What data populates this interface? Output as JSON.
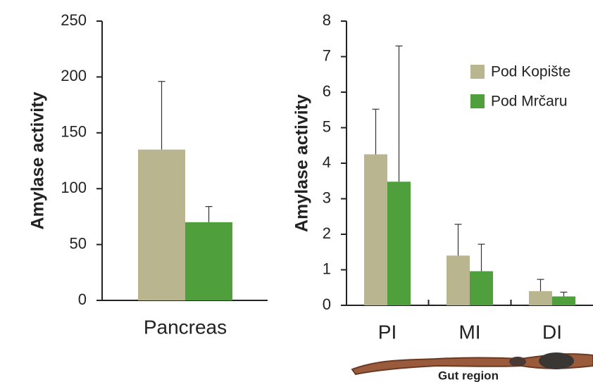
{
  "chart_data": [
    {
      "type": "bar",
      "ylabel": "Amylase activity",
      "categories": [
        "Pancreas"
      ],
      "series": [
        {
          "color": "#b9b58f",
          "values": [
            135
          ],
          "errors": [
            61
          ]
        },
        {
          "color": "#4f9f3d",
          "values": [
            70
          ],
          "errors": [
            14
          ]
        }
      ],
      "ylim": [
        0,
        250
      ],
      "yticks": [
        0,
        50,
        100,
        150,
        200,
        250
      ]
    },
    {
      "type": "bar",
      "ylabel": "Amylase activity",
      "xlabel": "Gut region",
      "categories": [
        "PI",
        "MI",
        "DI"
      ],
      "series": [
        {
          "name": "Pod Kopište",
          "color": "#b9b58f",
          "values": [
            4.25,
            1.4,
            0.4
          ],
          "errors": [
            1.27,
            0.88,
            0.33
          ]
        },
        {
          "name": "Pod Mrčaru",
          "color": "#4f9f3d",
          "values": [
            3.48,
            0.96,
            0.25
          ],
          "errors": [
            3.82,
            0.76,
            0.12
          ]
        }
      ],
      "ylim": [
        0,
        8
      ],
      "yticks": [
        0,
        1,
        2,
        3,
        4,
        5,
        6,
        7,
        8
      ],
      "legend": "upper right"
    }
  ]
}
